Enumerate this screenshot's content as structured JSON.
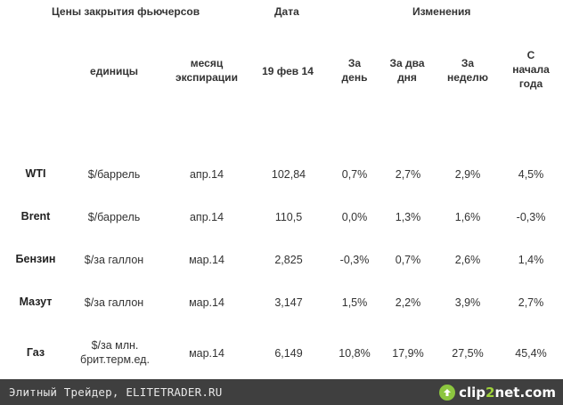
{
  "table": {
    "title": "Цены закрытия фьючерсов",
    "date_header": "Дата",
    "changes_header": "Изменения",
    "columns": {
      "units": "единицы",
      "expiry": "месяц экспирации",
      "date": "19 фев 14",
      "day": "За день",
      "two_days": "За два дня",
      "week": "За неделю",
      "ytd": "С начала года"
    },
    "rows": [
      {
        "name": "WTI",
        "units": "$/баррель",
        "expiry": "апр.14",
        "price": "102,84",
        "day": "0,7%",
        "two_days": "2,7%",
        "week": "2,9%",
        "ytd": "4,5%"
      },
      {
        "name": "Brent",
        "units": "$/баррель",
        "expiry": "апр.14",
        "price": "110,5",
        "day": "0,0%",
        "two_days": "1,3%",
        "week": "1,6%",
        "ytd": "-0,3%"
      },
      {
        "name": "Бензин",
        "units": "$/за галлон",
        "expiry": "мар.14",
        "price": "2,825",
        "day": "-0,3%",
        "two_days": "0,7%",
        "week": "2,6%",
        "ytd": "1,4%"
      },
      {
        "name": "Мазут",
        "units": "$/за галлон",
        "expiry": "мар.14",
        "price": "3,147",
        "day": "1,5%",
        "two_days": "2,2%",
        "week": "3,9%",
        "ytd": "2,7%"
      },
      {
        "name": "Газ",
        "units": "$/за млн. брит.терм.ед.",
        "expiry": "мар.14",
        "price": "6,149",
        "day": "10,8%",
        "two_days": "17,9%",
        "week": "27,5%",
        "ytd": "45,4%"
      }
    ]
  },
  "footer": {
    "text": "Элитный Трейдер, ELITETRADER.RU",
    "logo_part1": "clip",
    "logo_part2": "2",
    "logo_part3": "net.com",
    "logo_icon": "clip2net-arrow-icon"
  }
}
